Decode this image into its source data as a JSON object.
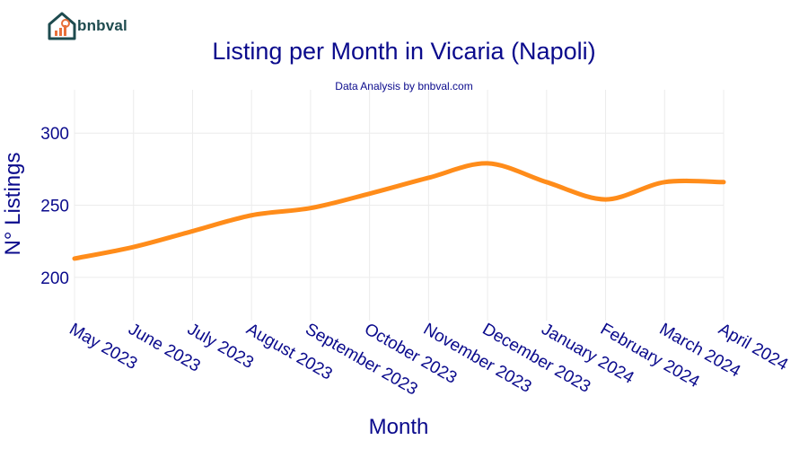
{
  "brand": {
    "name": "bnbval",
    "color": "#1e4b4f",
    "accent": "#e8703a"
  },
  "chart_data": {
    "type": "line",
    "title": "Listing per Month in Vicaria (Napoli)",
    "subtitle": "Data Analysis by bnbval.com",
    "xlabel": "Month",
    "ylabel": "N° Listings",
    "categories": [
      "May 2023",
      "June 2023",
      "July 2023",
      "August 2023",
      "September 2023",
      "October 2023",
      "November 2023",
      "December 2023",
      "January 2024",
      "February 2024",
      "March 2024",
      "April 2024"
    ],
    "series": [
      {
        "values": [
          213,
          221,
          232,
          243,
          248,
          258,
          269,
          279,
          266,
          254,
          266,
          266
        ],
        "color": "#ff8c1a"
      }
    ],
    "yticks": [
      200,
      250,
      300
    ],
    "ylim": [
      170,
      330
    ],
    "grid": true
  }
}
